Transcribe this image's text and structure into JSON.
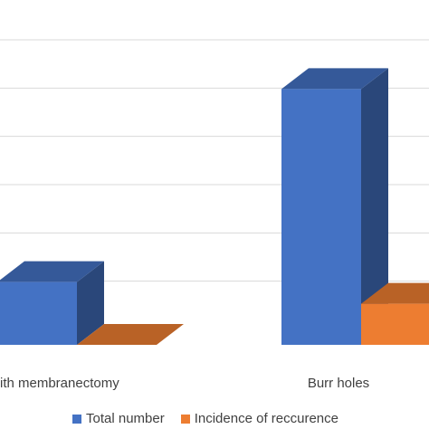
{
  "chart_data": {
    "type": "bar",
    "style": "3d-clustered-column",
    "categories": [
      "Craniotomy with membranectomy",
      "Burr holes"
    ],
    "series": [
      {
        "name": "Total number",
        "color": "#4472C4",
        "values": [
          13,
          53
        ]
      },
      {
        "name": "Incidence of reccurence",
        "color": "#ED7D31",
        "values": [
          0,
          8.5
        ]
      }
    ],
    "ylim": [
      0,
      60
    ],
    "grid": true,
    "legend_position": "bottom",
    "title": "",
    "xlabel": "",
    "ylabel": ""
  }
}
